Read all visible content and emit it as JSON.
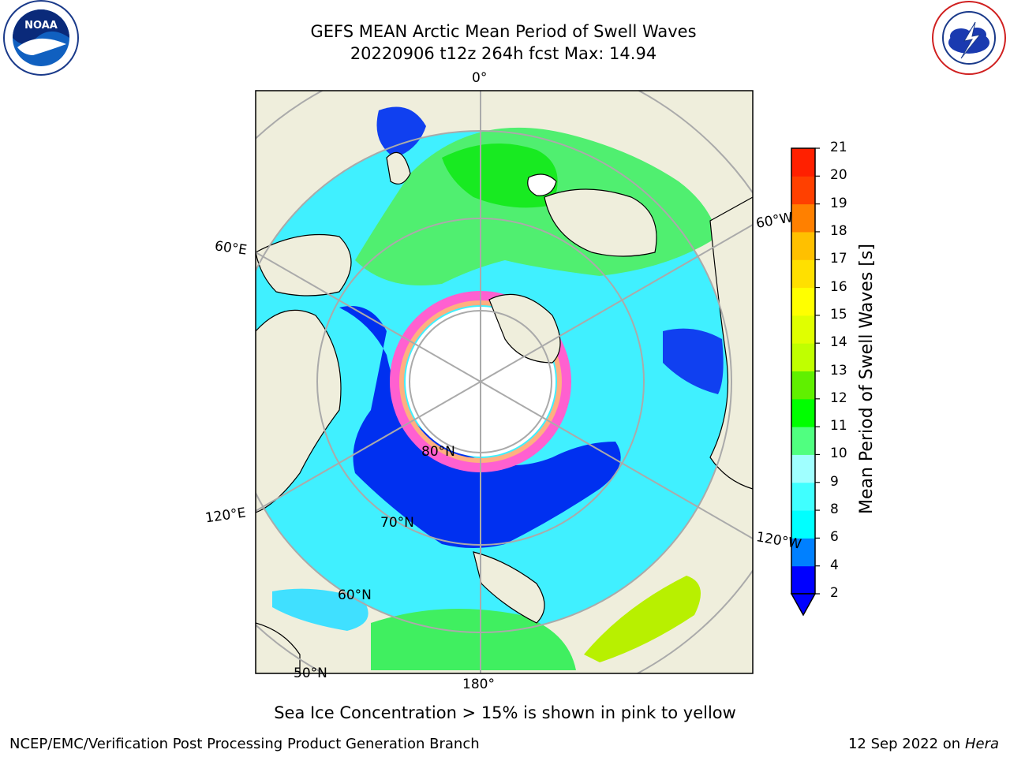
{
  "header": {
    "title_line1": "GEFS MEAN Arctic Mean Period of Swell Waves",
    "title_line2": "20220906 t12z 264h fcst   Max: 14.94"
  },
  "logos": {
    "left": {
      "icon": "noaa-logo",
      "text": "NOAA"
    },
    "right": {
      "icon": "nws-logo",
      "text": "NATIONAL WEATHER SERVICE"
    }
  },
  "map": {
    "meridian_labels": {
      "top": "0°",
      "left_upper": "60°E",
      "right_upper": "60°W",
      "left_lower": "120°E",
      "right_lower": "120°W",
      "bottom": "180°"
    },
    "parallel_labels": {
      "p80": "80°N",
      "p70": "70°N",
      "p60": "60°N",
      "p50": "50°N"
    }
  },
  "colorbar": {
    "label": "Mean Period of Swell Waves [s]",
    "ticks": [
      "2",
      "4",
      "6",
      "8",
      "9",
      "10",
      "11",
      "12",
      "13",
      "14",
      "15",
      "16",
      "17",
      "18",
      "19",
      "20",
      "21"
    ],
    "colors": [
      "#0000ff",
      "#0080ff",
      "#00ffff",
      "#40ffff",
      "#a0ffff",
      "#50ff80",
      "#00ff00",
      "#60f000",
      "#c0ff00",
      "#e0ff00",
      "#ffff00",
      "#ffe000",
      "#ffc000",
      "#ff8000",
      "#ff4000",
      "#ff2000",
      "#ff0000"
    ],
    "extend_color": "#0000ff"
  },
  "caption": "Sea Ice Concentration > 15% is shown in pink to yellow",
  "footer": {
    "left": "NCEP/EMC/Verification Post Processing Product Generation Branch",
    "right_date": "12 Sep 2022 on",
    "right_host": "Hera"
  }
}
